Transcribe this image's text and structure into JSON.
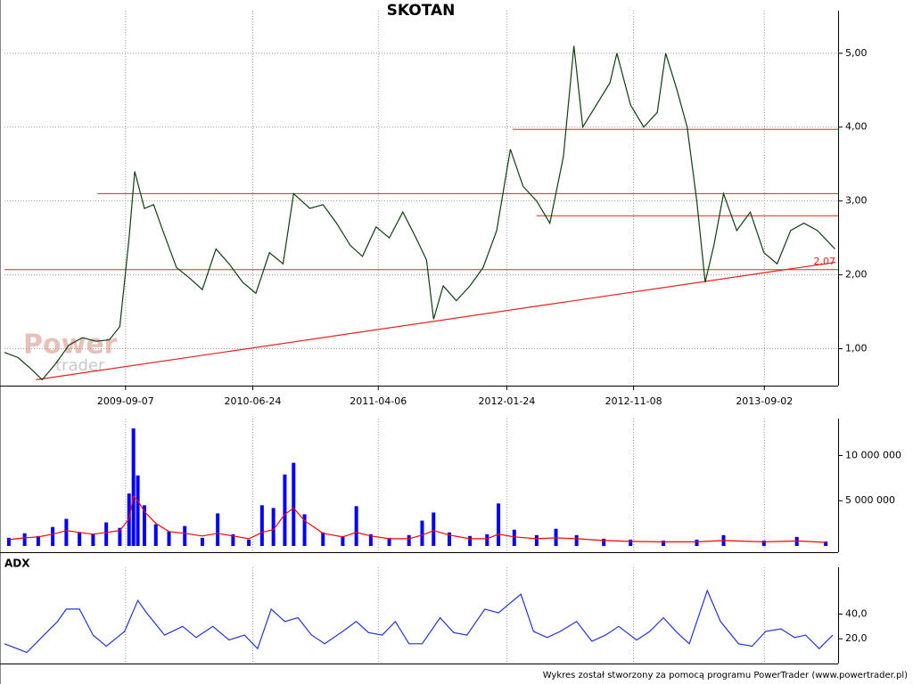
{
  "chart_data": [
    {
      "type": "line",
      "title": "SKOTAN",
      "x": [
        "2008-12-05",
        "2009-01-05",
        "2009-02-05",
        "2009-03-01",
        "2009-04-01",
        "2009-05-01",
        "2009-06-01",
        "2009-07-01",
        "2009-08-01",
        "2009-08-25",
        "2009-09-15",
        "2009-09-28",
        "2009-10-20",
        "2009-11-10",
        "2009-12-01",
        "2010-01-01",
        "2010-02-01",
        "2010-03-01",
        "2010-04-01",
        "2010-05-01",
        "2010-06-01",
        "2010-07-01",
        "2010-08-01",
        "2010-09-01",
        "2010-09-25",
        "2010-11-01",
        "2010-12-01",
        "2011-01-01",
        "2011-02-01",
        "2011-03-01",
        "2011-04-01",
        "2011-05-01",
        "2011-06-01",
        "2011-07-01",
        "2011-07-25",
        "2011-08-10",
        "2011-09-01",
        "2011-10-01",
        "2011-11-01",
        "2011-12-01",
        "2012-01-01",
        "2012-02-01",
        "2012-03-01",
        "2012-04-01",
        "2012-05-01",
        "2012-06-01",
        "2012-06-25",
        "2012-07-15",
        "2012-08-15",
        "2012-09-15",
        "2012-10-01",
        "2012-11-01",
        "2012-12-01",
        "2013-01-01",
        "2013-01-20",
        "2013-02-15",
        "2013-03-10",
        "2013-04-01",
        "2013-04-20",
        "2013-05-10",
        "2013-06-01",
        "2013-07-01",
        "2013-08-01",
        "2013-09-01",
        "2013-10-01",
        "2013-11-01",
        "2013-12-01",
        "2014-01-01",
        "2014-02-10"
      ],
      "series": [
        {
          "color": "#0b400b",
          "values": [
            0.95,
            0.88,
            0.72,
            0.58,
            0.8,
            1.05,
            1.15,
            1.1,
            1.12,
            1.3,
            2.5,
            3.4,
            2.9,
            2.95,
            2.6,
            2.1,
            1.95,
            1.8,
            2.35,
            2.15,
            1.9,
            1.75,
            2.3,
            2.15,
            3.1,
            2.9,
            2.95,
            2.7,
            2.4,
            2.25,
            2.65,
            2.5,
            2.85,
            2.5,
            2.2,
            1.4,
            1.85,
            1.65,
            1.85,
            2.1,
            2.6,
            3.7,
            3.2,
            3.0,
            2.7,
            3.6,
            5.1,
            4.0,
            4.3,
            4.6,
            5.0,
            4.3,
            4.0,
            4.2,
            5.0,
            4.5,
            4.0,
            3.0,
            1.9,
            2.4,
            3.1,
            2.6,
            2.85,
            2.3,
            2.15,
            2.6,
            2.7,
            2.6,
            2.35
          ]
        }
      ],
      "xlim": [
        "2008-12-05",
        "2014-02-11"
      ],
      "xticks": [
        "2009-09-07",
        "2010-06-24",
        "2011-04-06",
        "2012-01-24",
        "2012-11-08",
        "2013-09-02"
      ],
      "ylim": [
        0.5,
        5.48
      ],
      "yticks": [
        {
          "value": 1,
          "label": "1,00"
        },
        {
          "value": 2,
          "label": "2,00"
        },
        {
          "value": 3,
          "label": "3,00"
        },
        {
          "value": 4,
          "label": "4,00"
        },
        {
          "value": 5,
          "label": "5,00"
        }
      ],
      "grid": "both",
      "line_color": "#e82020",
      "levels": [
        {
          "value": 3.1,
          "start": "2009-07-05"
        },
        {
          "value": 2.07,
          "start": "2008-12-05",
          "label": "2,07"
        },
        {
          "value": 3.97,
          "start": "2012-02-06"
        },
        {
          "value": 2.8,
          "start": "2012-04-01"
        }
      ],
      "trend": {
        "x": [
          "2009-02-15",
          "2014-02-11"
        ],
        "values": [
          0.58,
          2.17
        ]
      }
    },
    {
      "type": "bar",
      "x": [
        "2008-12-15",
        "2009-01-20",
        "2009-02-20",
        "2009-03-25",
        "2009-04-25",
        "2009-05-25",
        "2009-06-25",
        "2009-07-25",
        "2009-08-25",
        "2009-09-15",
        "2009-09-25",
        "2009-10-05",
        "2009-10-20",
        "2009-11-15",
        "2009-12-15",
        "2010-01-20",
        "2010-03-01",
        "2010-04-05",
        "2010-05-10",
        "2010-06-15",
        "2010-07-15",
        "2010-08-10",
        "2010-09-05",
        "2010-09-25",
        "2010-10-20",
        "2010-12-01",
        "2011-01-15",
        "2011-02-15",
        "2011-03-20",
        "2011-05-01",
        "2011-06-15",
        "2011-07-15",
        "2011-08-10",
        "2011-09-15",
        "2011-11-01",
        "2011-12-10",
        "2012-01-05",
        "2012-02-10",
        "2012-04-01",
        "2012-05-15",
        "2012-07-01",
        "2012-09-01",
        "2012-11-01",
        "2013-01-15",
        "2013-04-01",
        "2013-06-01",
        "2013-09-01",
        "2013-11-15",
        "2014-01-20"
      ],
      "series": [
        {
          "type": "bar",
          "color": "#0000ff",
          "values": [
            900000,
            1400000,
            1100000,
            2100000,
            3000000,
            1500000,
            1300000,
            2600000,
            2000000,
            5800000,
            13000000,
            7800000,
            4500000,
            2400000,
            1600000,
            2200000,
            900000,
            3600000,
            1300000,
            700000,
            4500000,
            4200000,
            7900000,
            9200000,
            3500000,
            1500000,
            1100000,
            4400000,
            1300000,
            900000,
            1200000,
            2800000,
            3700000,
            1500000,
            1100000,
            1300000,
            4700000,
            1800000,
            1200000,
            1900000,
            1200000,
            800000,
            700000,
            600000,
            700000,
            1200000,
            600000,
            1000000,
            500000
          ]
        },
        {
          "type": "line",
          "color": "#ff0000",
          "values": [
            700000,
            900000,
            1000000,
            1300000,
            1700000,
            1500000,
            1300000,
            1500000,
            1700000,
            3000000,
            5500000,
            5000000,
            3800000,
            2500000,
            1600000,
            1400000,
            1100000,
            1400000,
            1100000,
            800000,
            1500000,
            1800000,
            3500000,
            4200000,
            2800000,
            1400000,
            1000000,
            1500000,
            1100000,
            800000,
            800000,
            1200000,
            1700000,
            1200000,
            800000,
            800000,
            1300000,
            1000000,
            800000,
            900000,
            800000,
            600000,
            500000,
            450000,
            450000,
            600000,
            450000,
            550000,
            400000
          ]
        }
      ],
      "xlim": [
        "2008-12-05",
        "2014-02-11"
      ],
      "ylim": [
        0,
        13300000
      ],
      "yticks": [
        {
          "value": 5000000,
          "label": "5 000 000"
        },
        {
          "value": 10000000,
          "label": "10 000 000"
        }
      ],
      "grid": "x"
    },
    {
      "type": "line",
      "title": "ADX",
      "x": [
        "2008-12-05",
        "2009-01-25",
        "2009-03-05",
        "2009-04-05",
        "2009-04-25",
        "2009-05-25",
        "2009-06-25",
        "2009-07-25",
        "2009-09-05",
        "2009-10-05",
        "2009-10-25",
        "2009-12-05",
        "2010-01-15",
        "2010-02-15",
        "2010-03-25",
        "2010-05-01",
        "2010-06-05",
        "2010-07-05",
        "2010-08-05",
        "2010-09-05",
        "2010-10-05",
        "2010-11-05",
        "2010-12-05",
        "2011-01-15",
        "2011-02-15",
        "2011-03-15",
        "2011-04-15",
        "2011-05-15",
        "2011-06-15",
        "2011-07-15",
        "2011-08-25",
        "2011-09-25",
        "2011-10-25",
        "2011-12-05",
        "2012-01-05",
        "2012-02-25",
        "2012-03-25",
        "2012-04-25",
        "2012-05-25",
        "2012-07-01",
        "2012-08-05",
        "2012-09-05",
        "2012-10-05",
        "2012-11-15",
        "2012-12-15",
        "2013-01-15",
        "2013-02-15",
        "2013-03-15",
        "2013-04-25",
        "2013-05-25",
        "2013-07-05",
        "2013-08-05",
        "2013-09-05",
        "2013-10-10",
        "2013-11-10",
        "2013-12-05",
        "2014-01-05",
        "2014-02-05"
      ],
      "series": [
        {
          "color": "#2233dd",
          "values": [
            16,
            9,
            23,
            34,
            44,
            44,
            23,
            14,
            26,
            51,
            41,
            23,
            30,
            21,
            30,
            19,
            23,
            12,
            44,
            34,
            37,
            23,
            16,
            26,
            34,
            25,
            23,
            34,
            16,
            16,
            37,
            25,
            23,
            44,
            41,
            56,
            26,
            21,
            26,
            34,
            18,
            23,
            30,
            19,
            26,
            37,
            25,
            16,
            59,
            34,
            16,
            14,
            26,
            28,
            21,
            23,
            12,
            23
          ]
        }
      ],
      "xlim": [
        "2008-12-05",
        "2014-02-11"
      ],
      "ylim": [
        0,
        72
      ],
      "yticks": [
        {
          "value": 20,
          "label": "20,0"
        },
        {
          "value": 40,
          "label": "40,0"
        }
      ],
      "grid": "x"
    }
  ],
  "watermark": {
    "line1": "Power",
    "line2": "trader"
  },
  "footer": "Wykres został stworzony za pomocą programu PowerTrader (www.powertrader.pl)"
}
